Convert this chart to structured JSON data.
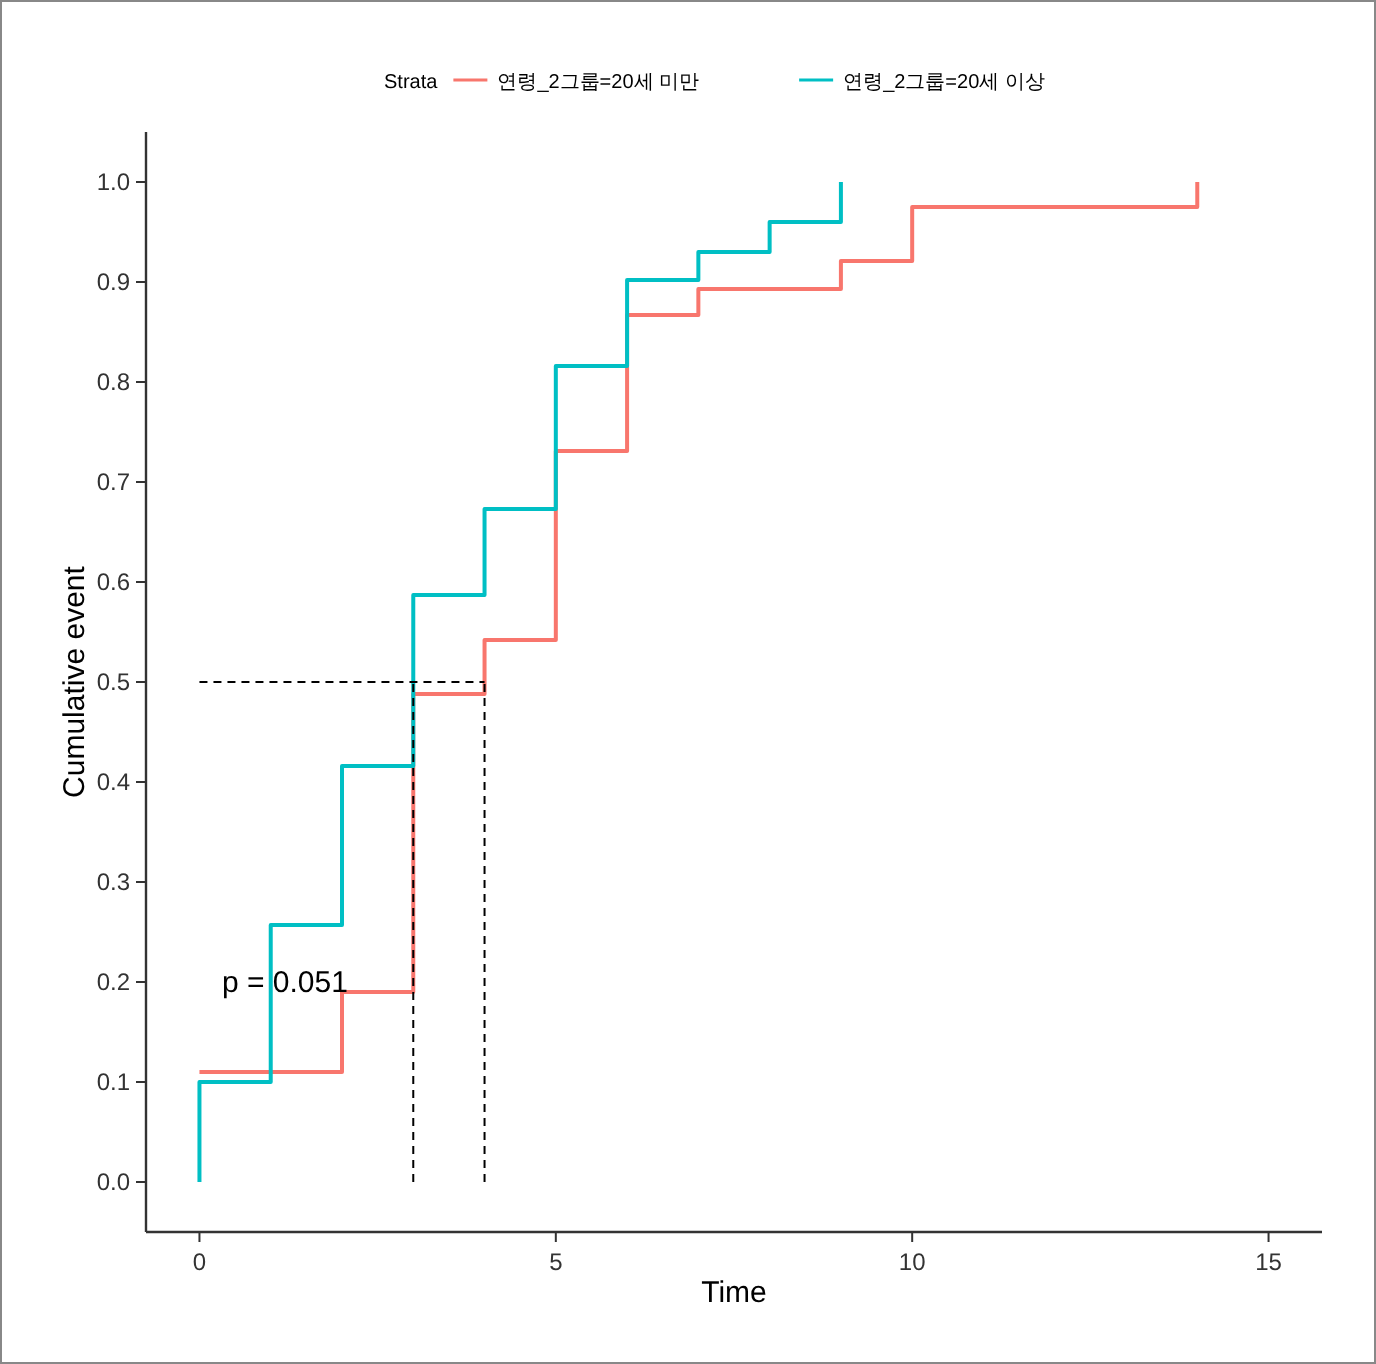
{
  "chart_data": {
    "type": "step",
    "xlabel": "Time",
    "ylabel": "Cumulative event",
    "legend_title": "Strata",
    "legend": "top",
    "grid": false,
    "xlim": [
      -0.75,
      15.75
    ],
    "ylim": [
      -0.05,
      1.05
    ],
    "xticks": [
      0,
      5,
      10,
      15
    ],
    "yticks": [
      {
        "value": 0,
        "label": "0.0"
      },
      {
        "value": 0.1,
        "label": "0.1"
      },
      {
        "value": 0.2,
        "label": "0.2"
      },
      {
        "value": 0.3,
        "label": "0.3"
      },
      {
        "value": 0.4,
        "label": "0.4"
      },
      {
        "value": 0.5,
        "label": "0.5"
      },
      {
        "value": 0.6,
        "label": "0.6"
      },
      {
        "value": 0.7,
        "label": "0.7"
      },
      {
        "value": 0.8,
        "label": "0.8"
      },
      {
        "value": 0.9,
        "label": "0.9"
      },
      {
        "value": 1,
        "label": "1.0"
      }
    ],
    "annotations": [
      "p = 0.051"
    ],
    "series": [
      {
        "name": "연령_2그룹=20세 미만",
        "color": "#f8766d",
        "x": [
          0,
          2,
          3,
          4,
          5,
          6,
          7,
          9,
          10,
          14
        ],
        "values": [
          0.11,
          0.19,
          0.488,
          0.542,
          0.731,
          0.867,
          0.893,
          0.921,
          0.975,
          1.0
        ]
      },
      {
        "name": "연령_2그룹=20세 이상",
        "color": "#00bfc4",
        "x": [
          0,
          0,
          1,
          2,
          3,
          4,
          5,
          6,
          7,
          8,
          9
        ],
        "values": [
          0,
          0.1,
          0.257,
          0.416,
          0.587,
          0.673,
          0.816,
          0.902,
          0.93,
          0.96,
          1.0
        ]
      },
      {
        "type": "line",
        "line_style": "dashed",
        "color": "#000000",
        "x": [
          0,
          4
        ],
        "values": [
          0.5,
          0.5
        ]
      },
      {
        "type": "line",
        "line_style": "dashed",
        "color": "#000000",
        "x": [
          3,
          3
        ],
        "values": [
          0,
          0.5
        ]
      },
      {
        "type": "line",
        "line_style": "dashed",
        "color": "#000000",
        "x": [
          4,
          4
        ],
        "values": [
          0,
          0.5
        ]
      }
    ]
  }
}
